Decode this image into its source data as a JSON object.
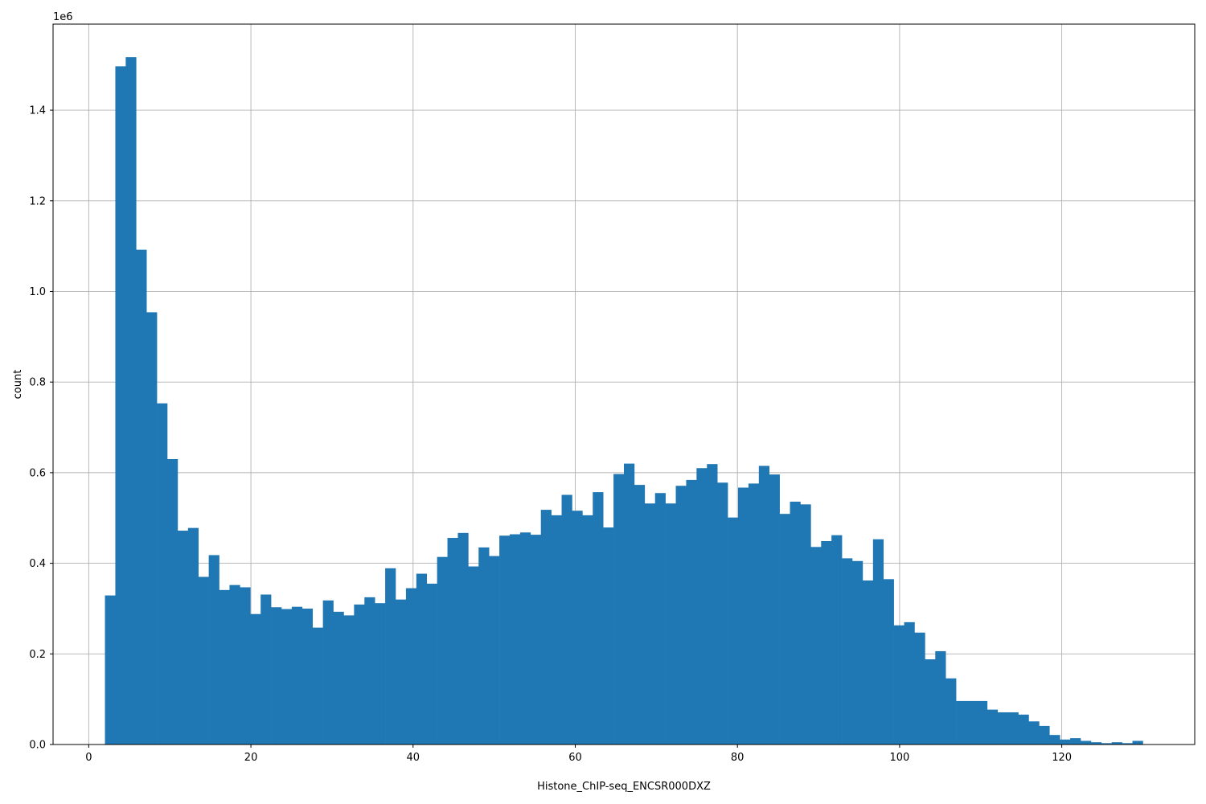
{
  "chart_data": {
    "type": "bar",
    "subtype": "histogram",
    "xlabel": "Histone_ChIP-seq_ENCSR000DXZ",
    "ylabel": "count",
    "y_offset_text": "1e6",
    "xlim": [
      -4.4,
      136.4
    ],
    "ylim": [
      0,
      1590000
    ],
    "grid": true,
    "bar_color": "#1f77b4",
    "grid_color": "#b0b0b0",
    "bin_start": 2.0,
    "bin_width": 1.28,
    "x_ticks": [
      0,
      20,
      40,
      60,
      80,
      100,
      120
    ],
    "x_tick_labels": [
      "0",
      "20",
      "40",
      "60",
      "80",
      "100",
      "120"
    ],
    "y_ticks": [
      0,
      200000,
      400000,
      600000,
      800000,
      1000000,
      1200000,
      1400000
    ],
    "y_tick_labels": [
      "0.0",
      "0.2",
      "0.4",
      "0.6",
      "0.8",
      "1.0",
      "1.2",
      "1.4"
    ],
    "values": [
      329000,
      1497000,
      1517000,
      1092000,
      954000,
      753000,
      630000,
      472000,
      478000,
      370000,
      418000,
      341000,
      352000,
      347000,
      288000,
      331000,
      303000,
      299000,
      304000,
      300000,
      258000,
      318000,
      293000,
      285000,
      309000,
      325000,
      312000,
      389000,
      320000,
      345000,
      377000,
      355000,
      414000,
      456000,
      467000,
      393000,
      435000,
      416000,
      461000,
      464000,
      468000,
      463000,
      518000,
      506000,
      551000,
      516000,
      506000,
      557000,
      479000,
      597000,
      620000,
      573000,
      532000,
      555000,
      532000,
      571000,
      584000,
      610000,
      619000,
      578000,
      501000,
      567000,
      576000,
      615000,
      596000,
      509000,
      536000,
      530000,
      436000,
      449000,
      462000,
      411000,
      405000,
      362000,
      453000,
      365000,
      263000,
      270000,
      247000,
      188000,
      206000,
      146000,
      96000,
      96000,
      96000,
      77000,
      71000,
      71000,
      66000,
      51000,
      41000,
      21000,
      11000,
      14000,
      8000,
      5000,
      3000,
      5000,
      3000,
      8000
    ]
  }
}
